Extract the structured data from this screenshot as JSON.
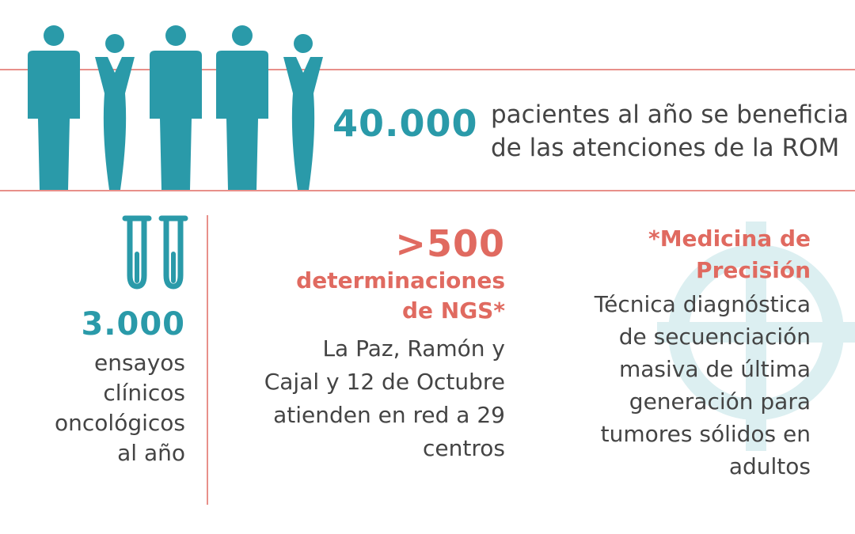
{
  "colors": {
    "teal": "#2a9aa9",
    "coral": "#e06a60",
    "rule": "#e8908a",
    "text": "#444444",
    "watermark": "#dceff1"
  },
  "hero": {
    "number": "40.000",
    "lines": [
      "pacientes al año se beneficia",
      "de las atenciones de la ROM"
    ],
    "icon": "people-silhouettes-icon"
  },
  "trials": {
    "icon": "test-tubes-icon",
    "number": "3.000",
    "lines": [
      "ensayos",
      "clínicos",
      "oncológicos",
      "al año"
    ]
  },
  "ngs": {
    "number": ">500",
    "label_lines": [
      "determinaciones",
      "de NGS*"
    ],
    "lines": [
      "La Paz, Ramón y",
      "Cajal y 12 de Octubre",
      "atienden en red a 29",
      "centros"
    ]
  },
  "precision": {
    "watermark_icon": "cross-watermark-icon",
    "title_lines": [
      "*Medicina de",
      "Precisión"
    ],
    "lines": [
      "Técnica diagnóstica",
      "de secuenciación",
      "masiva de última",
      "generación para",
      "tumores sólidos en",
      "adultos"
    ]
  }
}
